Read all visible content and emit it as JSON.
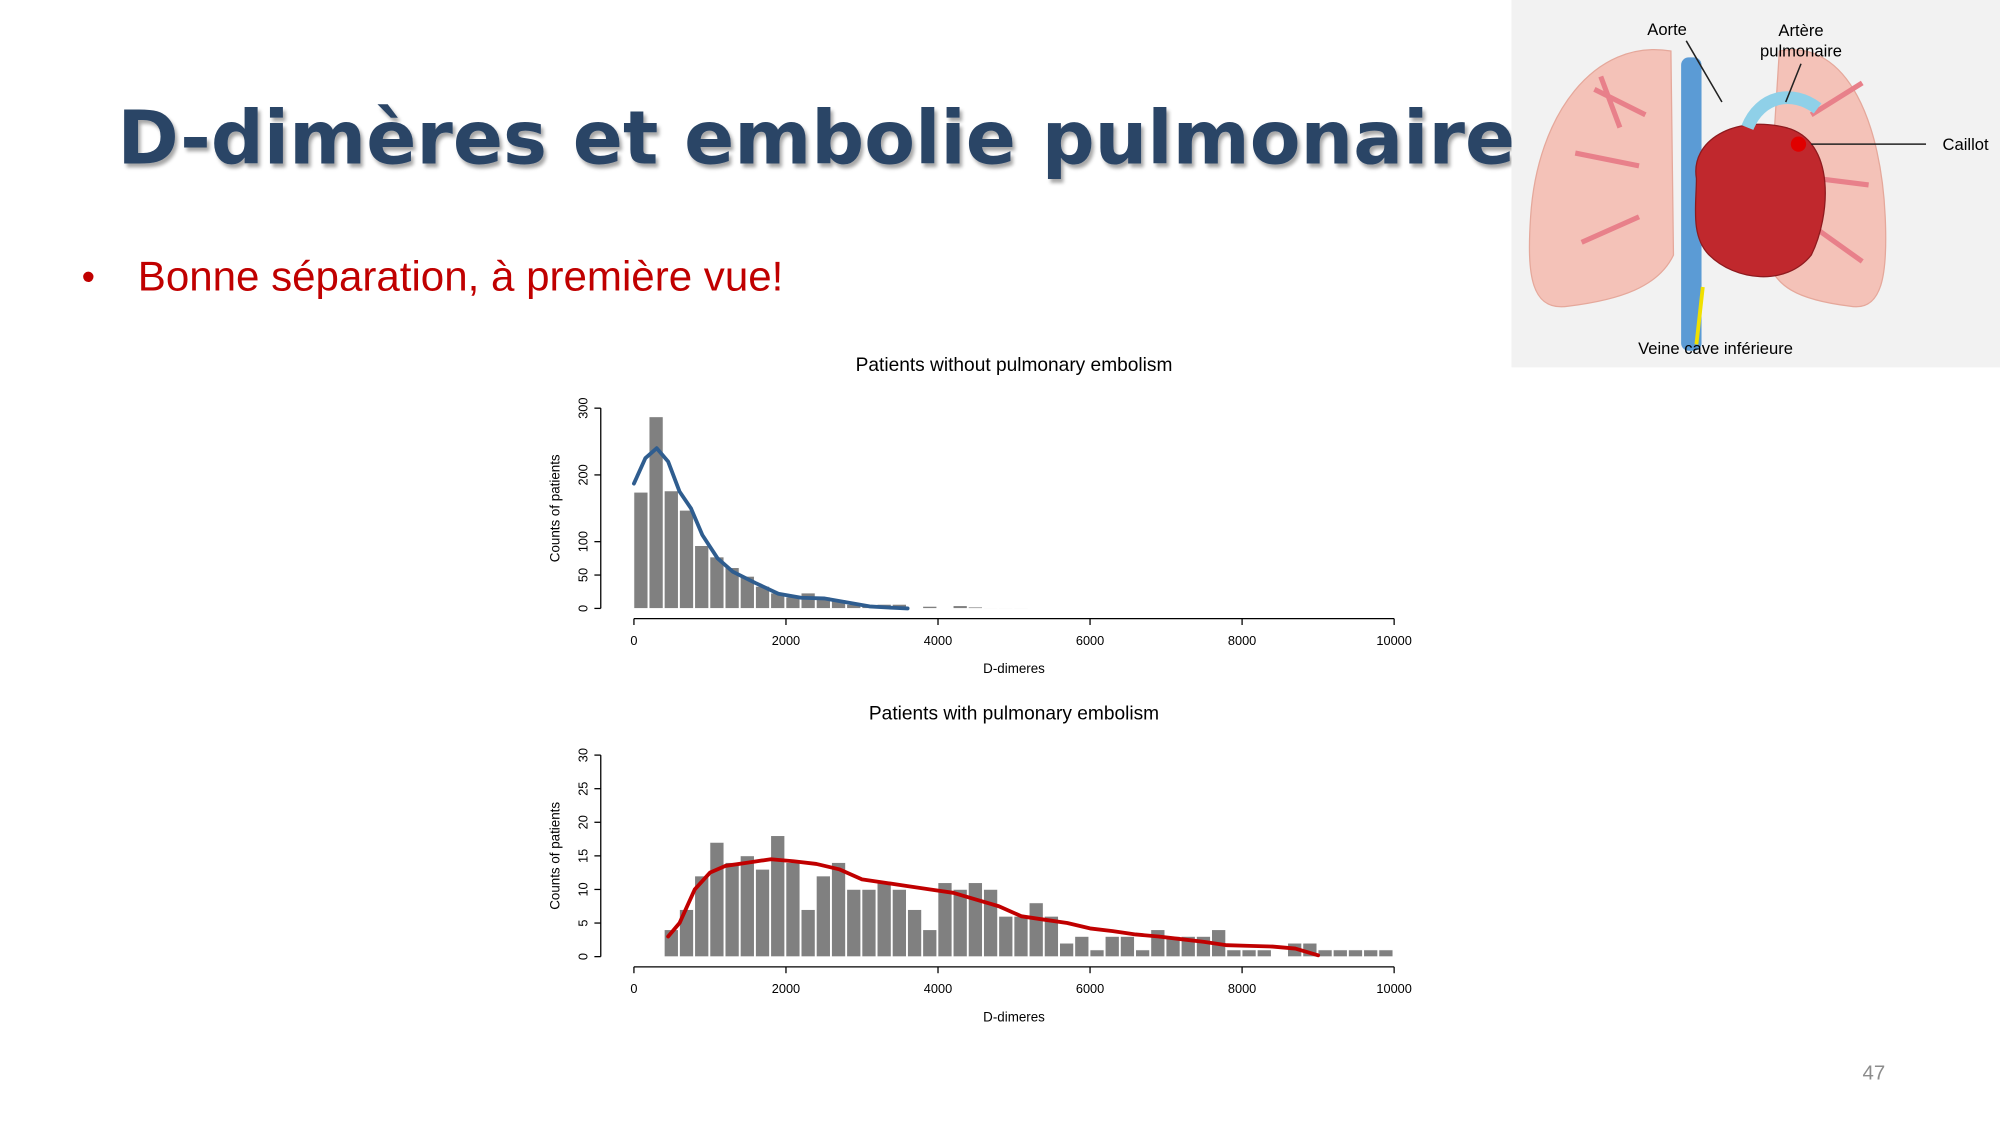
{
  "slide": {
    "title": "D-dimères et embolie pulmonaire",
    "bullet": "Bonne séparation, à première vue!",
    "page_number": "47"
  },
  "image": {
    "labels": [
      "Aorte",
      "Artère",
      "pulmonaire",
      "Caillot",
      "Veine cave inférieure"
    ]
  },
  "chart_data": [
    {
      "type": "histogram",
      "title": "Patients without pulmonary embolism",
      "xlabel": "D-dimeres",
      "ylabel": "Counts of patients",
      "bins": [
        0,
        200,
        400,
        600,
        800,
        1000,
        1200,
        1400,
        1600,
        1800,
        2000,
        2200,
        2400,
        2600,
        2800,
        3000,
        3200,
        3400,
        3600,
        3800,
        4000,
        4200,
        4400,
        4600,
        4800,
        5000,
        5200
      ],
      "counts": [
        174,
        287,
        176,
        147,
        94,
        77,
        61,
        48,
        33,
        23,
        17,
        23,
        17,
        13,
        6,
        4,
        6,
        6,
        0,
        3,
        0,
        4,
        2,
        1,
        1,
        1
      ],
      "color": "#808080",
      "density": {
        "x": [
          0,
          150,
          300,
          450,
          600,
          750,
          900,
          1100,
          1300,
          1600,
          1900,
          2200,
          2500,
          2800,
          3100,
          3400,
          3600
        ],
        "values": [
          187,
          225,
          240,
          220,
          175,
          150,
          110,
          75,
          55,
          38,
          22,
          16,
          15,
          9,
          3,
          1,
          0
        ],
        "color": "#2f5d8f"
      },
      "xlim": [
        0,
        10000
      ],
      "ylim": [
        0,
        300
      ],
      "xticks": [
        0,
        2000,
        4000,
        6000,
        8000,
        10000
      ],
      "yticks": [
        0,
        50,
        100,
        200,
        300
      ]
    },
    {
      "type": "histogram",
      "title": "Patients with pulmonary embolism",
      "xlabel": "D-dimeres",
      "ylabel": "Counts of patients",
      "bins": [
        400,
        600,
        800,
        1000,
        1200,
        1400,
        1600,
        1800,
        2000,
        2200,
        2400,
        2600,
        2800,
        3000,
        3200,
        3400,
        3600,
        3800,
        4000,
        4200,
        4400,
        4600,
        4800,
        5000,
        5200,
        5400,
        5600,
        5800,
        6000,
        6200,
        6400,
        6600,
        6800,
        7000,
        7200,
        7400,
        7600,
        7800,
        8000,
        8200,
        8400,
        8600,
        8800,
        9000,
        9200,
        9400,
        9600,
        9800,
        10000
      ],
      "counts": [
        4,
        7,
        12,
        17,
        14,
        15,
        13,
        18,
        14,
        7,
        12,
        14,
        10,
        10,
        11,
        10,
        7,
        4,
        11,
        10,
        11,
        10,
        6,
        6,
        8,
        6,
        2,
        3,
        1,
        3,
        3,
        1,
        4,
        3,
        3,
        3,
        4,
        1,
        1,
        1,
        0,
        2,
        2,
        1,
        1,
        1,
        1,
        1
      ],
      "color": "#808080",
      "density": {
        "x": [
          450,
          600,
          800,
          1000,
          1200,
          1500,
          1800,
          2100,
          2400,
          2700,
          3000,
          3300,
          3600,
          3900,
          4200,
          4500,
          4800,
          5100,
          5400,
          5700,
          6000,
          6300,
          6600,
          6900,
          7200,
          7500,
          7800,
          8100,
          8400,
          8700,
          9000
        ],
        "values": [
          3,
          5,
          10,
          12.5,
          13.5,
          14,
          14.5,
          14.2,
          13.8,
          13,
          11.5,
          11,
          10.5,
          10,
          9.5,
          8.5,
          7.5,
          6,
          5.5,
          5,
          4.2,
          3.8,
          3.3,
          3,
          2.6,
          2.2,
          1.7,
          1.6,
          1.5,
          1.2,
          0.2
        ],
        "color": "#c00000"
      },
      "xlim": [
        0,
        10000
      ],
      "ylim": [
        0,
        30
      ],
      "xticks": [
        0,
        2000,
        4000,
        6000,
        8000,
        10000
      ],
      "yticks": [
        0,
        5,
        10,
        15,
        20,
        25,
        30
      ]
    }
  ]
}
